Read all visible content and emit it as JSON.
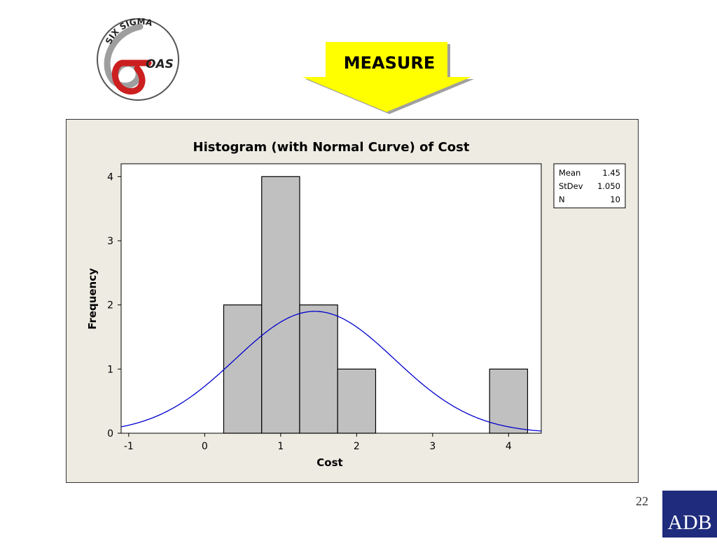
{
  "logo": {
    "top_text": "SIX SIGMA",
    "side_text": "OAS"
  },
  "banner": {
    "label": "MEASURE",
    "arrow_color": "#ffff00"
  },
  "chart_data": {
    "type": "bar",
    "title": "Histogram (with Normal Curve) of Cost",
    "xlabel": "Cost",
    "ylabel": "Frequency",
    "bins": [
      {
        "start": 0.25,
        "end": 0.75,
        "count": 2
      },
      {
        "start": 0.75,
        "end": 1.25,
        "count": 4
      },
      {
        "start": 1.25,
        "end": 1.75,
        "count": 2
      },
      {
        "start": 1.75,
        "end": 2.25,
        "count": 1
      },
      {
        "start": 3.75,
        "end": 4.25,
        "count": 1
      }
    ],
    "xlim": [
      -1.1,
      4.43
    ],
    "ylim": [
      0,
      4.2
    ],
    "xticks": [
      -1,
      0,
      1,
      2,
      3,
      4
    ],
    "yticks": [
      0,
      1,
      2,
      3,
      4
    ],
    "normal_curve": {
      "mean": 1.45,
      "stdev": 1.05,
      "n": 10,
      "bin_width": 0.5,
      "color": "#0000cc"
    },
    "bar_color": "#c0c0c0",
    "legend": {
      "placement": "top-right",
      "rows": [
        {
          "label": "Mean",
          "value": "1.45"
        },
        {
          "label": "StDev",
          "value": "1.050"
        },
        {
          "label": "N",
          "value": "10"
        }
      ]
    }
  },
  "footer": {
    "page_number": "22",
    "brand": "ADB"
  }
}
